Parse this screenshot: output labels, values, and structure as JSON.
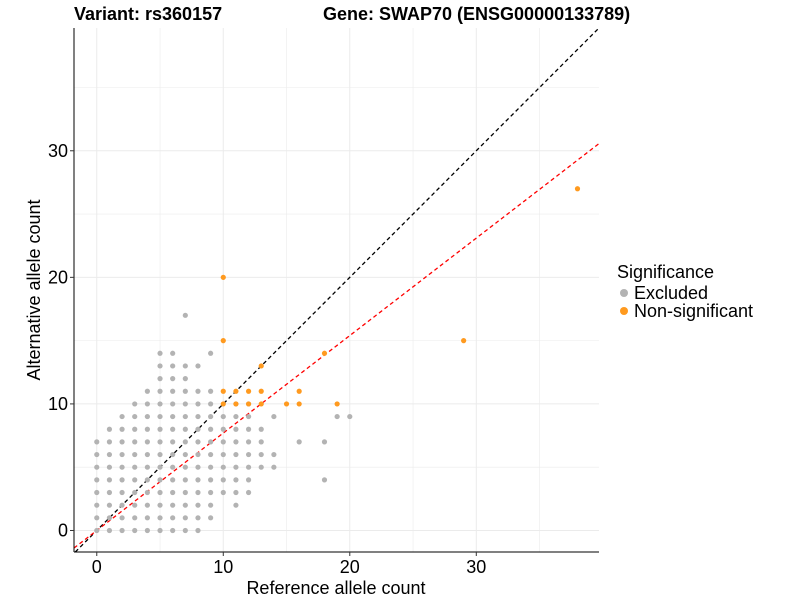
{
  "title_left": "Variant: rs360157",
  "title_right": "Gene: SWAP70 (ENSG00000133789)",
  "chart_data": {
    "type": "scatter",
    "xlabel": "Reference allele count",
    "ylabel": "Alternative allele count",
    "xlim": [
      -1.8,
      39.7
    ],
    "ylim": [
      -1.7,
      39.7
    ],
    "xticks": [
      0,
      10,
      20,
      30
    ],
    "yticks": [
      0,
      10,
      20,
      30
    ],
    "grid": true,
    "legend": {
      "title": "Significance",
      "placement": "right",
      "items": [
        {
          "label": "Excluded",
          "color": "#b3b3b3"
        },
        {
          "label": "Non-significant",
          "color": "#ff9a1f"
        }
      ]
    },
    "reference_lines": [
      {
        "slope": 1.0,
        "intercept": 0,
        "color": "#000000",
        "style": "dashed"
      },
      {
        "slope": 0.77,
        "intercept": 0,
        "color": "#ff0000",
        "style": "dashed"
      }
    ],
    "series": [
      {
        "name": "Excluded",
        "color": "#b3b3b3",
        "points": [
          [
            0,
            0
          ],
          [
            0,
            1
          ],
          [
            0,
            2
          ],
          [
            0,
            3
          ],
          [
            0,
            4
          ],
          [
            0,
            5
          ],
          [
            0,
            6
          ],
          [
            0,
            7
          ],
          [
            1,
            0
          ],
          [
            1,
            1
          ],
          [
            1,
            2
          ],
          [
            1,
            3
          ],
          [
            1,
            4
          ],
          [
            1,
            5
          ],
          [
            1,
            6
          ],
          [
            1,
            7
          ],
          [
            1,
            8
          ],
          [
            2,
            0
          ],
          [
            2,
            1
          ],
          [
            2,
            2
          ],
          [
            2,
            3
          ],
          [
            2,
            4
          ],
          [
            2,
            5
          ],
          [
            2,
            6
          ],
          [
            2,
            7
          ],
          [
            2,
            8
          ],
          [
            2,
            9
          ],
          [
            3,
            0
          ],
          [
            3,
            1
          ],
          [
            3,
            2
          ],
          [
            3,
            3
          ],
          [
            3,
            4
          ],
          [
            3,
            5
          ],
          [
            3,
            6
          ],
          [
            3,
            7
          ],
          [
            3,
            8
          ],
          [
            3,
            9
          ],
          [
            3,
            10
          ],
          [
            4,
            0
          ],
          [
            4,
            1
          ],
          [
            4,
            2
          ],
          [
            4,
            3
          ],
          [
            4,
            4
          ],
          [
            4,
            5
          ],
          [
            4,
            6
          ],
          [
            4,
            7
          ],
          [
            4,
            8
          ],
          [
            4,
            9
          ],
          [
            4,
            10
          ],
          [
            4,
            11
          ],
          [
            5,
            0
          ],
          [
            5,
            1
          ],
          [
            5,
            2
          ],
          [
            5,
            3
          ],
          [
            5,
            4
          ],
          [
            5,
            5
          ],
          [
            5,
            6
          ],
          [
            5,
            7
          ],
          [
            5,
            8
          ],
          [
            5,
            9
          ],
          [
            5,
            10
          ],
          [
            5,
            11
          ],
          [
            5,
            12
          ],
          [
            5,
            13
          ],
          [
            5,
            14
          ],
          [
            6,
            0
          ],
          [
            6,
            1
          ],
          [
            6,
            2
          ],
          [
            6,
            3
          ],
          [
            6,
            4
          ],
          [
            6,
            5
          ],
          [
            6,
            6
          ],
          [
            6,
            7
          ],
          [
            6,
            8
          ],
          [
            6,
            9
          ],
          [
            6,
            10
          ],
          [
            6,
            11
          ],
          [
            6,
            12
          ],
          [
            6,
            13
          ],
          [
            6,
            14
          ],
          [
            7,
            0
          ],
          [
            7,
            1
          ],
          [
            7,
            2
          ],
          [
            7,
            3
          ],
          [
            7,
            4
          ],
          [
            7,
            5
          ],
          [
            7,
            6
          ],
          [
            7,
            7
          ],
          [
            7,
            8
          ],
          [
            7,
            9
          ],
          [
            7,
            10
          ],
          [
            7,
            11
          ],
          [
            7,
            12
          ],
          [
            7,
            13
          ],
          [
            7,
            17
          ],
          [
            8,
            0
          ],
          [
            8,
            1
          ],
          [
            8,
            2
          ],
          [
            8,
            3
          ],
          [
            8,
            4
          ],
          [
            8,
            5
          ],
          [
            8,
            6
          ],
          [
            8,
            7
          ],
          [
            8,
            8
          ],
          [
            8,
            9
          ],
          [
            8,
            10
          ],
          [
            8,
            11
          ],
          [
            8,
            13
          ],
          [
            9,
            1
          ],
          [
            9,
            2
          ],
          [
            9,
            3
          ],
          [
            9,
            4
          ],
          [
            9,
            5
          ],
          [
            9,
            6
          ],
          [
            9,
            7
          ],
          [
            9,
            8
          ],
          [
            9,
            9
          ],
          [
            9,
            10
          ],
          [
            9,
            11
          ],
          [
            9,
            14
          ],
          [
            10,
            3
          ],
          [
            10,
            4
          ],
          [
            10,
            5
          ],
          [
            10,
            6
          ],
          [
            10,
            7
          ],
          [
            10,
            8
          ],
          [
            10,
            9
          ],
          [
            11,
            2
          ],
          [
            11,
            3
          ],
          [
            11,
            4
          ],
          [
            11,
            5
          ],
          [
            11,
            6
          ],
          [
            11,
            7
          ],
          [
            11,
            8
          ],
          [
            11,
            9
          ],
          [
            11,
            10
          ],
          [
            12,
            3
          ],
          [
            12,
            4
          ],
          [
            12,
            5
          ],
          [
            12,
            6
          ],
          [
            12,
            7
          ],
          [
            12,
            8
          ],
          [
            12,
            9
          ],
          [
            12,
            10
          ],
          [
            13,
            5
          ],
          [
            13,
            6
          ],
          [
            13,
            7
          ],
          [
            13,
            8
          ],
          [
            14,
            5
          ],
          [
            14,
            6
          ],
          [
            14,
            9
          ],
          [
            16,
            7
          ],
          [
            18,
            4
          ],
          [
            18,
            7
          ],
          [
            19,
            9
          ],
          [
            20,
            9
          ]
        ]
      },
      {
        "name": "Non-significant",
        "color": "#ff9a1f",
        "points": [
          [
            10,
            10
          ],
          [
            10,
            11
          ],
          [
            10,
            15
          ],
          [
            10,
            20
          ],
          [
            11,
            10
          ],
          [
            11,
            11
          ],
          [
            12,
            10
          ],
          [
            12,
            11
          ],
          [
            13,
            10
          ],
          [
            13,
            11
          ],
          [
            13,
            13
          ],
          [
            15,
            10
          ],
          [
            16,
            10
          ],
          [
            16,
            11
          ],
          [
            18,
            14
          ],
          [
            19,
            10
          ],
          [
            29,
            15
          ],
          [
            38,
            27
          ]
        ]
      }
    ]
  }
}
